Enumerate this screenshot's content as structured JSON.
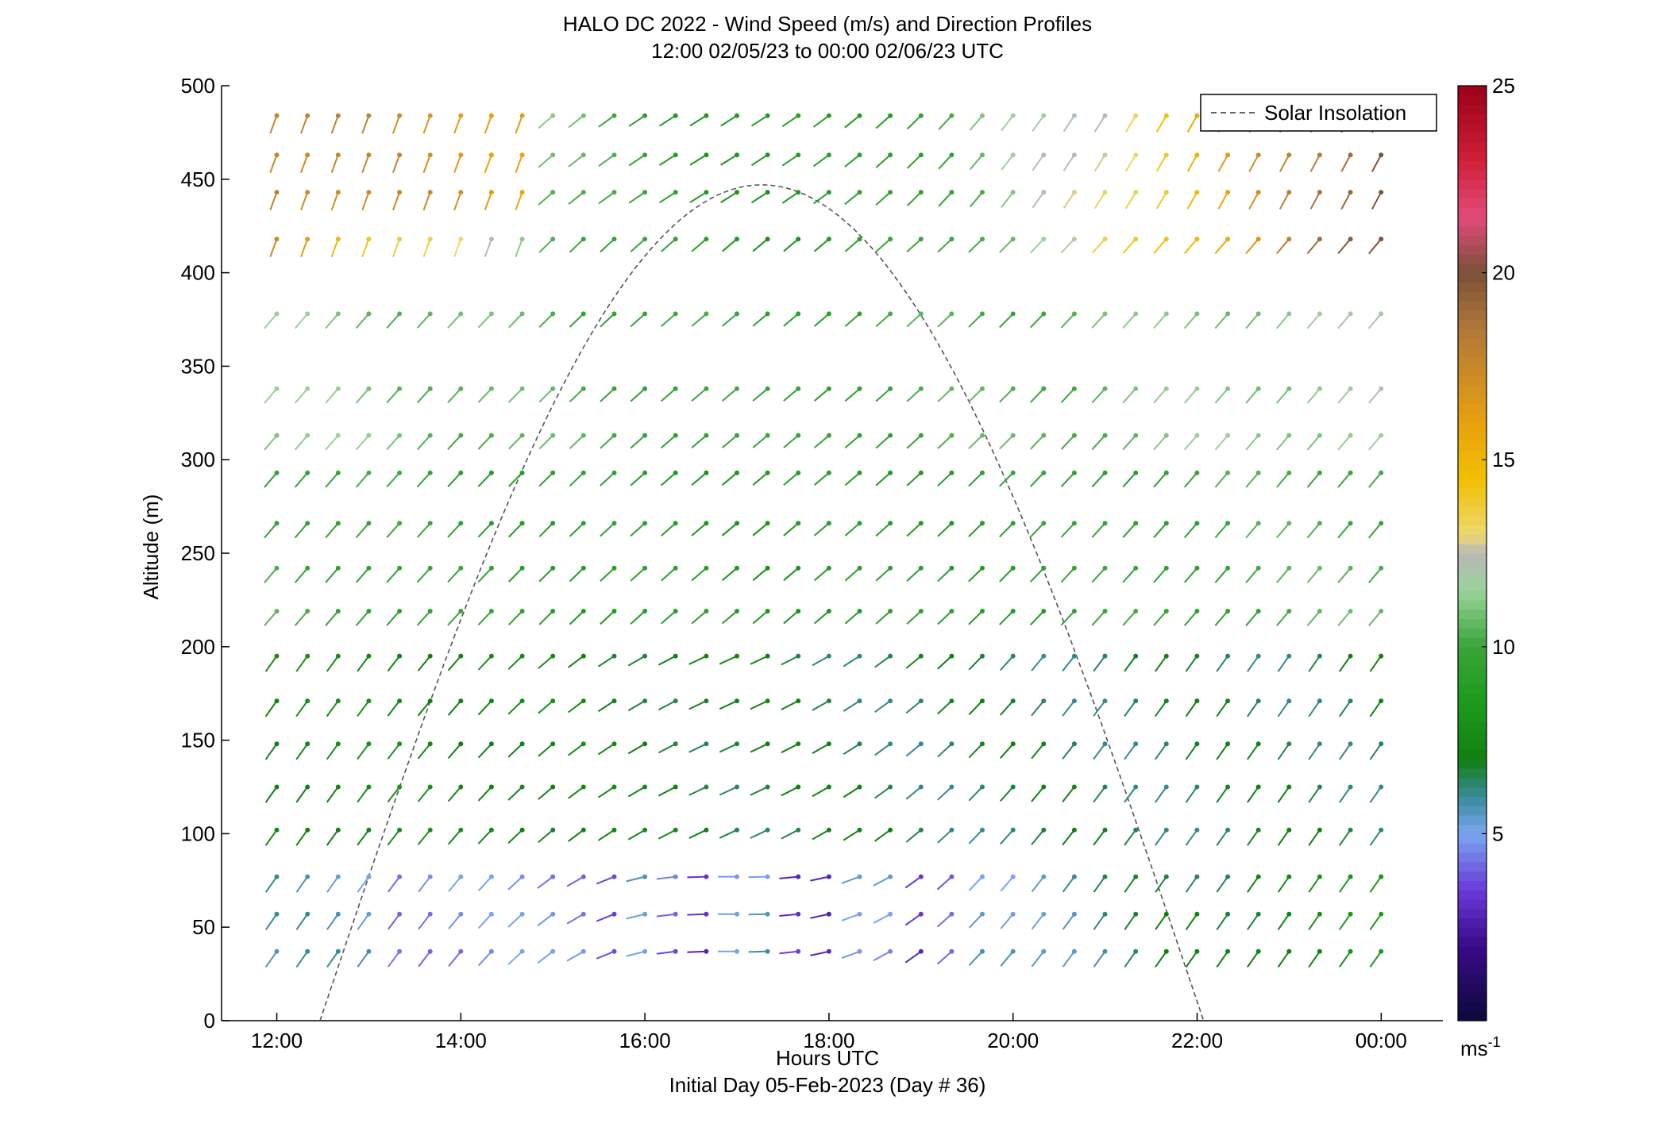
{
  "chart_data": {
    "type": "vector-field",
    "title": "HALO DC 2022 - Wind Speed (m/s) and Direction Profiles",
    "subtitle": "12:00 02/05/23 to 00:00 02/06/23  UTC",
    "xlabel": "Hours UTC",
    "xlabel_sub": "Initial Day 05-Feb-2023 (Day # 36)",
    "ylabel": "Altitude (m)",
    "xlim_hours": [
      11.4,
      24.67
    ],
    "ylim": [
      0,
      500
    ],
    "x_ticks": [
      {
        "value": 12,
        "label": "12:00"
      },
      {
        "value": 14,
        "label": "14:00"
      },
      {
        "value": 16,
        "label": "16:00"
      },
      {
        "value": 18,
        "label": "18:00"
      },
      {
        "value": 20,
        "label": "20:00"
      },
      {
        "value": 22,
        "label": "22:00"
      },
      {
        "value": 24,
        "label": "00:00"
      }
    ],
    "y_ticks": [
      0,
      50,
      100,
      150,
      200,
      250,
      300,
      350,
      400,
      450,
      500
    ],
    "colorbar": {
      "range": [
        0,
        25
      ],
      "ticks": [
        5,
        10,
        15,
        20,
        25
      ],
      "unit": "ms",
      "unit_exp": "-1"
    },
    "legend": {
      "position": "top-right",
      "entries": [
        {
          "label": "Solar Insolation",
          "style": "dashed",
          "color": "#666666"
        }
      ]
    },
    "solar_insolation": {
      "rise_hour": 12.47,
      "set_hour": 22.07,
      "peak_altitude": 447
    },
    "grid": false,
    "times_hours_start": 12.0,
    "time_step_hours": 0.3333,
    "time_count": 37,
    "altitudes": [
      40,
      60,
      80,
      100,
      120,
      140,
      160,
      180,
      200,
      220,
      240,
      260,
      280,
      300,
      320,
      340,
      360
    ],
    "altitude_levels_note": "",
    "heights_m": [
      40,
      60,
      80,
      100,
      120,
      140,
      160,
      180,
      200,
      220,
      240,
      260,
      280,
      300,
      320,
      340,
      360
    ],
    "rows": [
      {
        "altitude": 40,
        "speed": [
          4.3,
          5.3,
          4.5,
          4.6,
          4.3,
          4.8,
          4.1,
          4.3,
          4.3,
          4.9,
          4.6,
          4.5,
          4.5,
          4.5,
          4.2,
          4.7,
          5.2,
          5.6,
          5.2,
          4.4,
          5.4,
          4.2,
          4.5,
          4.2,
          4.7,
          3.5,
          7.9,
          7.5,
          7.9,
          7.6,
          7.7,
          7.0,
          6.9,
          8.3,
          9.6,
          5.9,
          5.9
        ],
        "dir": [
          45,
          30,
          20,
          20,
          25,
          20,
          25,
          20,
          20,
          20,
          15,
          15,
          15,
          10,
          5,
          0,
          -5,
          0,
          30,
          30,
          30,
          30,
          30,
          30,
          30,
          30,
          20,
          30,
          30,
          30,
          30,
          30,
          30,
          30,
          30,
          30,
          30
        ]
      },
      {
        "altitude": 60,
        "speed": [
          5.3,
          5.9,
          5.8,
          5.0,
          5.0,
          5.1,
          4.8,
          4.9,
          4.8,
          5.0,
          5.0,
          5.1,
          5.1,
          5.0,
          5.0,
          6.7,
          7.0,
          7.2,
          7.2,
          5.6,
          5.5,
          4.3,
          5.5,
          5.6,
          7.9,
          7.5,
          8.2,
          8.2,
          8.0,
          8.0,
          8.6,
          8.1,
          8.3,
          8.1,
          9.6,
          8.2,
          8.1
        ],
        "dir": [
          35,
          35,
          30,
          25,
          30,
          30,
          25,
          25,
          25,
          25,
          20,
          20,
          20,
          10,
          10,
          5,
          0,
          5,
          40,
          45,
          35,
          30,
          40,
          45,
          45,
          45,
          45,
          45,
          45,
          45,
          45,
          45,
          45,
          45,
          45,
          45,
          45
        ]
      }
    ]
  }
}
